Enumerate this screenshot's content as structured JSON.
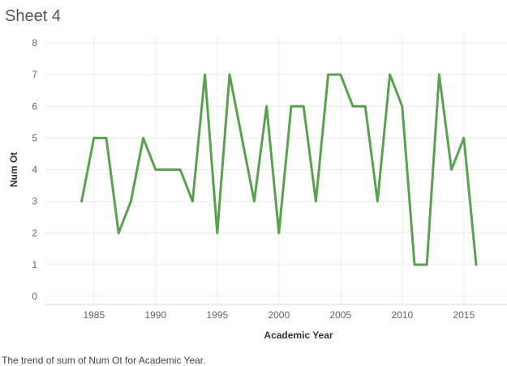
{
  "sheet": {
    "title": "Sheet 4"
  },
  "caption": "The trend of sum of Num Ot for Academic Year.",
  "colors": {
    "line": "#59A14F",
    "grid": "#ececec",
    "axis_text": "#666666"
  },
  "chart_data": {
    "type": "line",
    "xlabel": "Academic Year",
    "ylabel": "Num Ot",
    "xlim": [
      1981,
      2018.5
    ],
    "ylim": [
      0,
      8
    ],
    "x_ticks": [
      1985,
      1990,
      1995,
      2000,
      2005,
      2010,
      2015
    ],
    "y_ticks": [
      0,
      1,
      2,
      3,
      4,
      5,
      6,
      7,
      8
    ],
    "grid": true,
    "series": [
      {
        "x": [
          1984,
          1985,
          1986,
          1987,
          1988,
          1989,
          1990,
          1991,
          1992,
          1993,
          1994,
          1995,
          1996,
          1997,
          1998,
          1999,
          2000,
          2001,
          2002,
          2003,
          2004,
          2005,
          2006,
          2007,
          2008,
          2009,
          2010,
          2011,
          2012,
          2013,
          2014,
          2015,
          2016
        ],
        "values": [
          3,
          5,
          5,
          2,
          3,
          5,
          4,
          4,
          4,
          3,
          7,
          2,
          7,
          5,
          3,
          6,
          2,
          6,
          6,
          3,
          7,
          7,
          6,
          6,
          3,
          7,
          6,
          1,
          1,
          7,
          4,
          5,
          1
        ]
      }
    ]
  }
}
